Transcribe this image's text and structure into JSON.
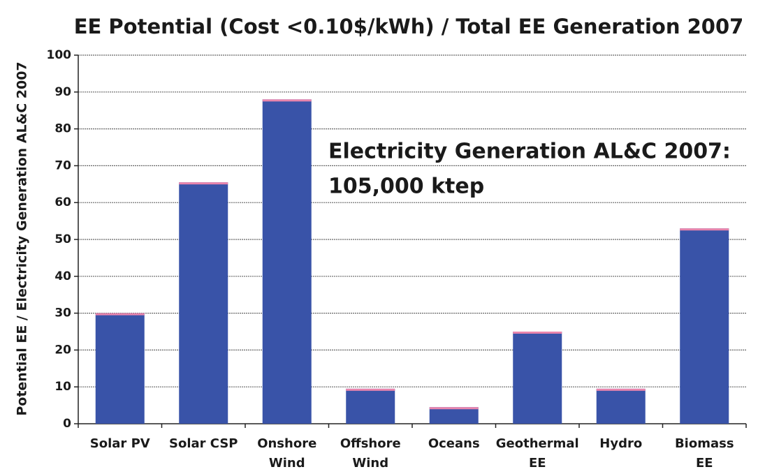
{
  "chart_data": {
    "type": "bar",
    "title": "EE Potential (Cost <0.10$/kWh) / Total EE Generation 2007",
    "y_label": "Potential EE / Electricity Generation AL&C 2007",
    "annotation": [
      "Electricity Generation AL&C 2007:",
      "105,000 ktep"
    ],
    "categories": [
      [
        "Solar PV"
      ],
      [
        "Solar CSP"
      ],
      [
        "Onshore",
        "Wind"
      ],
      [
        "Offshore",
        "Wind"
      ],
      [
        "Oceans"
      ],
      [
        "Geothermal",
        "EE"
      ],
      [
        "Hydro"
      ],
      [
        "Biomass",
        "EE"
      ]
    ],
    "values": [
      30,
      65.5,
      88,
      9.5,
      4.5,
      25,
      9.5,
      53
    ],
    "color": "#3953a8",
    "cap_color": "#e985ad",
    "ylim": [
      0,
      100
    ],
    "yticks": [
      0,
      10,
      20,
      30,
      40,
      50,
      60,
      70,
      80,
      90,
      100
    ],
    "grid": true
  }
}
